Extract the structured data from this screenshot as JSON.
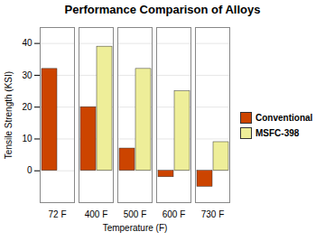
{
  "chart_data": {
    "type": "bar",
    "title": "Performance Comparison of Alloys",
    "xlabel": "Temperature (F)",
    "ylabel": "Tensile Strength (KSI)",
    "categories": [
      "72 F",
      "400 F",
      "500 F",
      "600 F",
      "730 F"
    ],
    "series": [
      {
        "name": "Conventional",
        "color": "#CC4400",
        "values": [
          32,
          20,
          7,
          -2,
          -5
        ]
      },
      {
        "name": "MSFC-398",
        "color": "#EEEE99",
        "values": [
          0,
          39,
          32,
          25,
          9
        ]
      }
    ],
    "ylim": [
      -10,
      45
    ],
    "yticks": [
      0,
      10,
      20,
      30,
      40
    ],
    "grid": true,
    "legend": "right"
  }
}
